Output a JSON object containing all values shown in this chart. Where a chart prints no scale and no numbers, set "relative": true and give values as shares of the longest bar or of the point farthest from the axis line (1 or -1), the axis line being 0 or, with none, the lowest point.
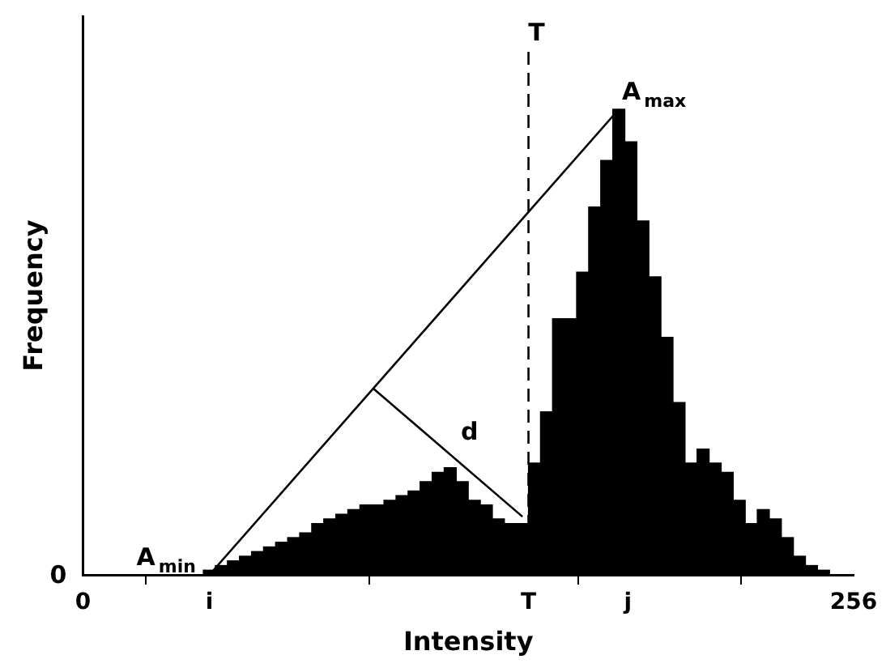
{
  "chart_data": {
    "type": "histogram",
    "relative": true,
    "xlabel": "Intensity",
    "ylabel": "Frequency",
    "bins": [
      40,
      44,
      48,
      52,
      56,
      60,
      64,
      68,
      72,
      76,
      80,
      84,
      88,
      92,
      96,
      100,
      104,
      108,
      112,
      116,
      120,
      124,
      128,
      132,
      136,
      140,
      144,
      148,
      152,
      156,
      160,
      164,
      168,
      172,
      176,
      180,
      184,
      188,
      192,
      196,
      200,
      204,
      208,
      212,
      216,
      220,
      224,
      228,
      232,
      236,
      240,
      244,
      248
    ],
    "values": [
      0.01,
      0.02,
      0.03,
      0.04,
      0.05,
      0.06,
      0.07,
      0.08,
      0.09,
      0.11,
      0.12,
      0.13,
      0.14,
      0.15,
      0.15,
      0.16,
      0.17,
      0.18,
      0.2,
      0.22,
      0.23,
      0.2,
      0.16,
      0.15,
      0.12,
      0.11,
      0.11,
      0.24,
      0.35,
      0.55,
      0.55,
      0.65,
      0.79,
      0.89,
      1,
      0.93,
      0.76,
      0.64,
      0.51,
      0.37,
      0.24,
      0.27,
      0.24,
      0.22,
      0.16,
      0.11,
      0.14,
      0.12,
      0.08,
      0.04,
      0.02,
      0.01
    ],
    "color": "#000000",
    "series": [
      {
        "type": "line",
        "x": [
          42,
          178
        ],
        "values": [
          0,
          1
        ],
        "color": "#000000"
      },
      {
        "type": "line",
        "x": [
          96.5,
          146
        ],
        "values": [
          0.4,
          0.125
        ],
        "color": "#000000"
      }
    ],
    "xlim": [
      0,
      256
    ],
    "xticks": [
      0,
      {
        "value": 42,
        "label": "i"
      },
      {
        "value": 148,
        "label": "T"
      },
      {
        "value": 181,
        "label": "j"
      },
      256
    ],
    "ref_lines": [
      {
        "axis": "x",
        "value": 148,
        "label": "T",
        "color": "#000000",
        "line_style": "dashed"
      }
    ],
    "annotations": [
      {
        "text": "A$_{min}$",
        "x": 42,
        "y": 0
      },
      {
        "text": "A$_{max}$",
        "x": 178,
        "y": 1
      },
      "d",
      "0"
    ],
    "grid": false,
    "legend": false,
    "marker": "none"
  }
}
